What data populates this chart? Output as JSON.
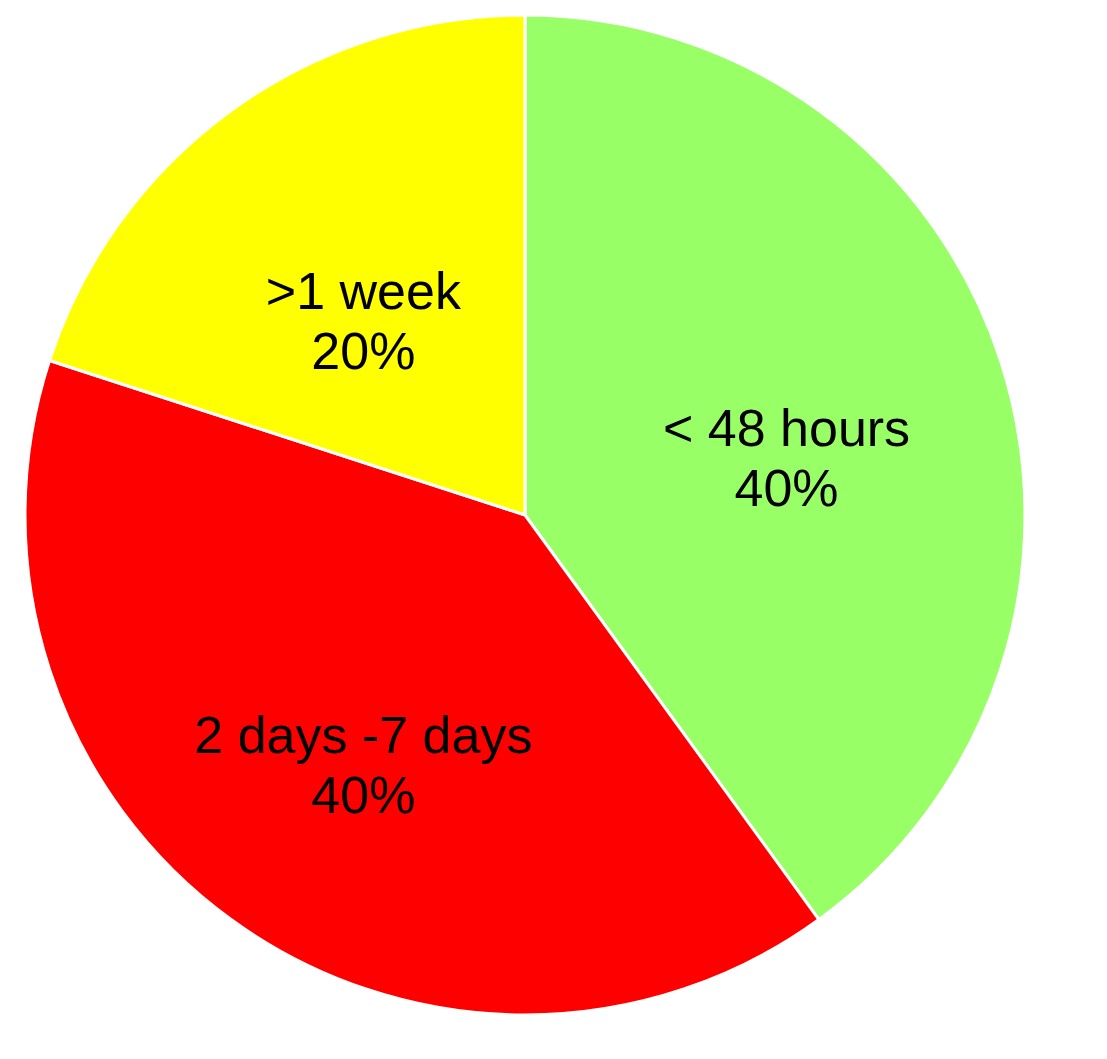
{
  "chart_data": {
    "type": "pie",
    "categories": [
      "< 48 hours",
      "2 days -7 days",
      ">1 week"
    ],
    "values": [
      40,
      40,
      20
    ],
    "value_labels": [
      "40%",
      "40%",
      "20%"
    ],
    "colors": [
      "#99ff66",
      "#ff0000",
      "#ffff00"
    ],
    "legend": false
  }
}
